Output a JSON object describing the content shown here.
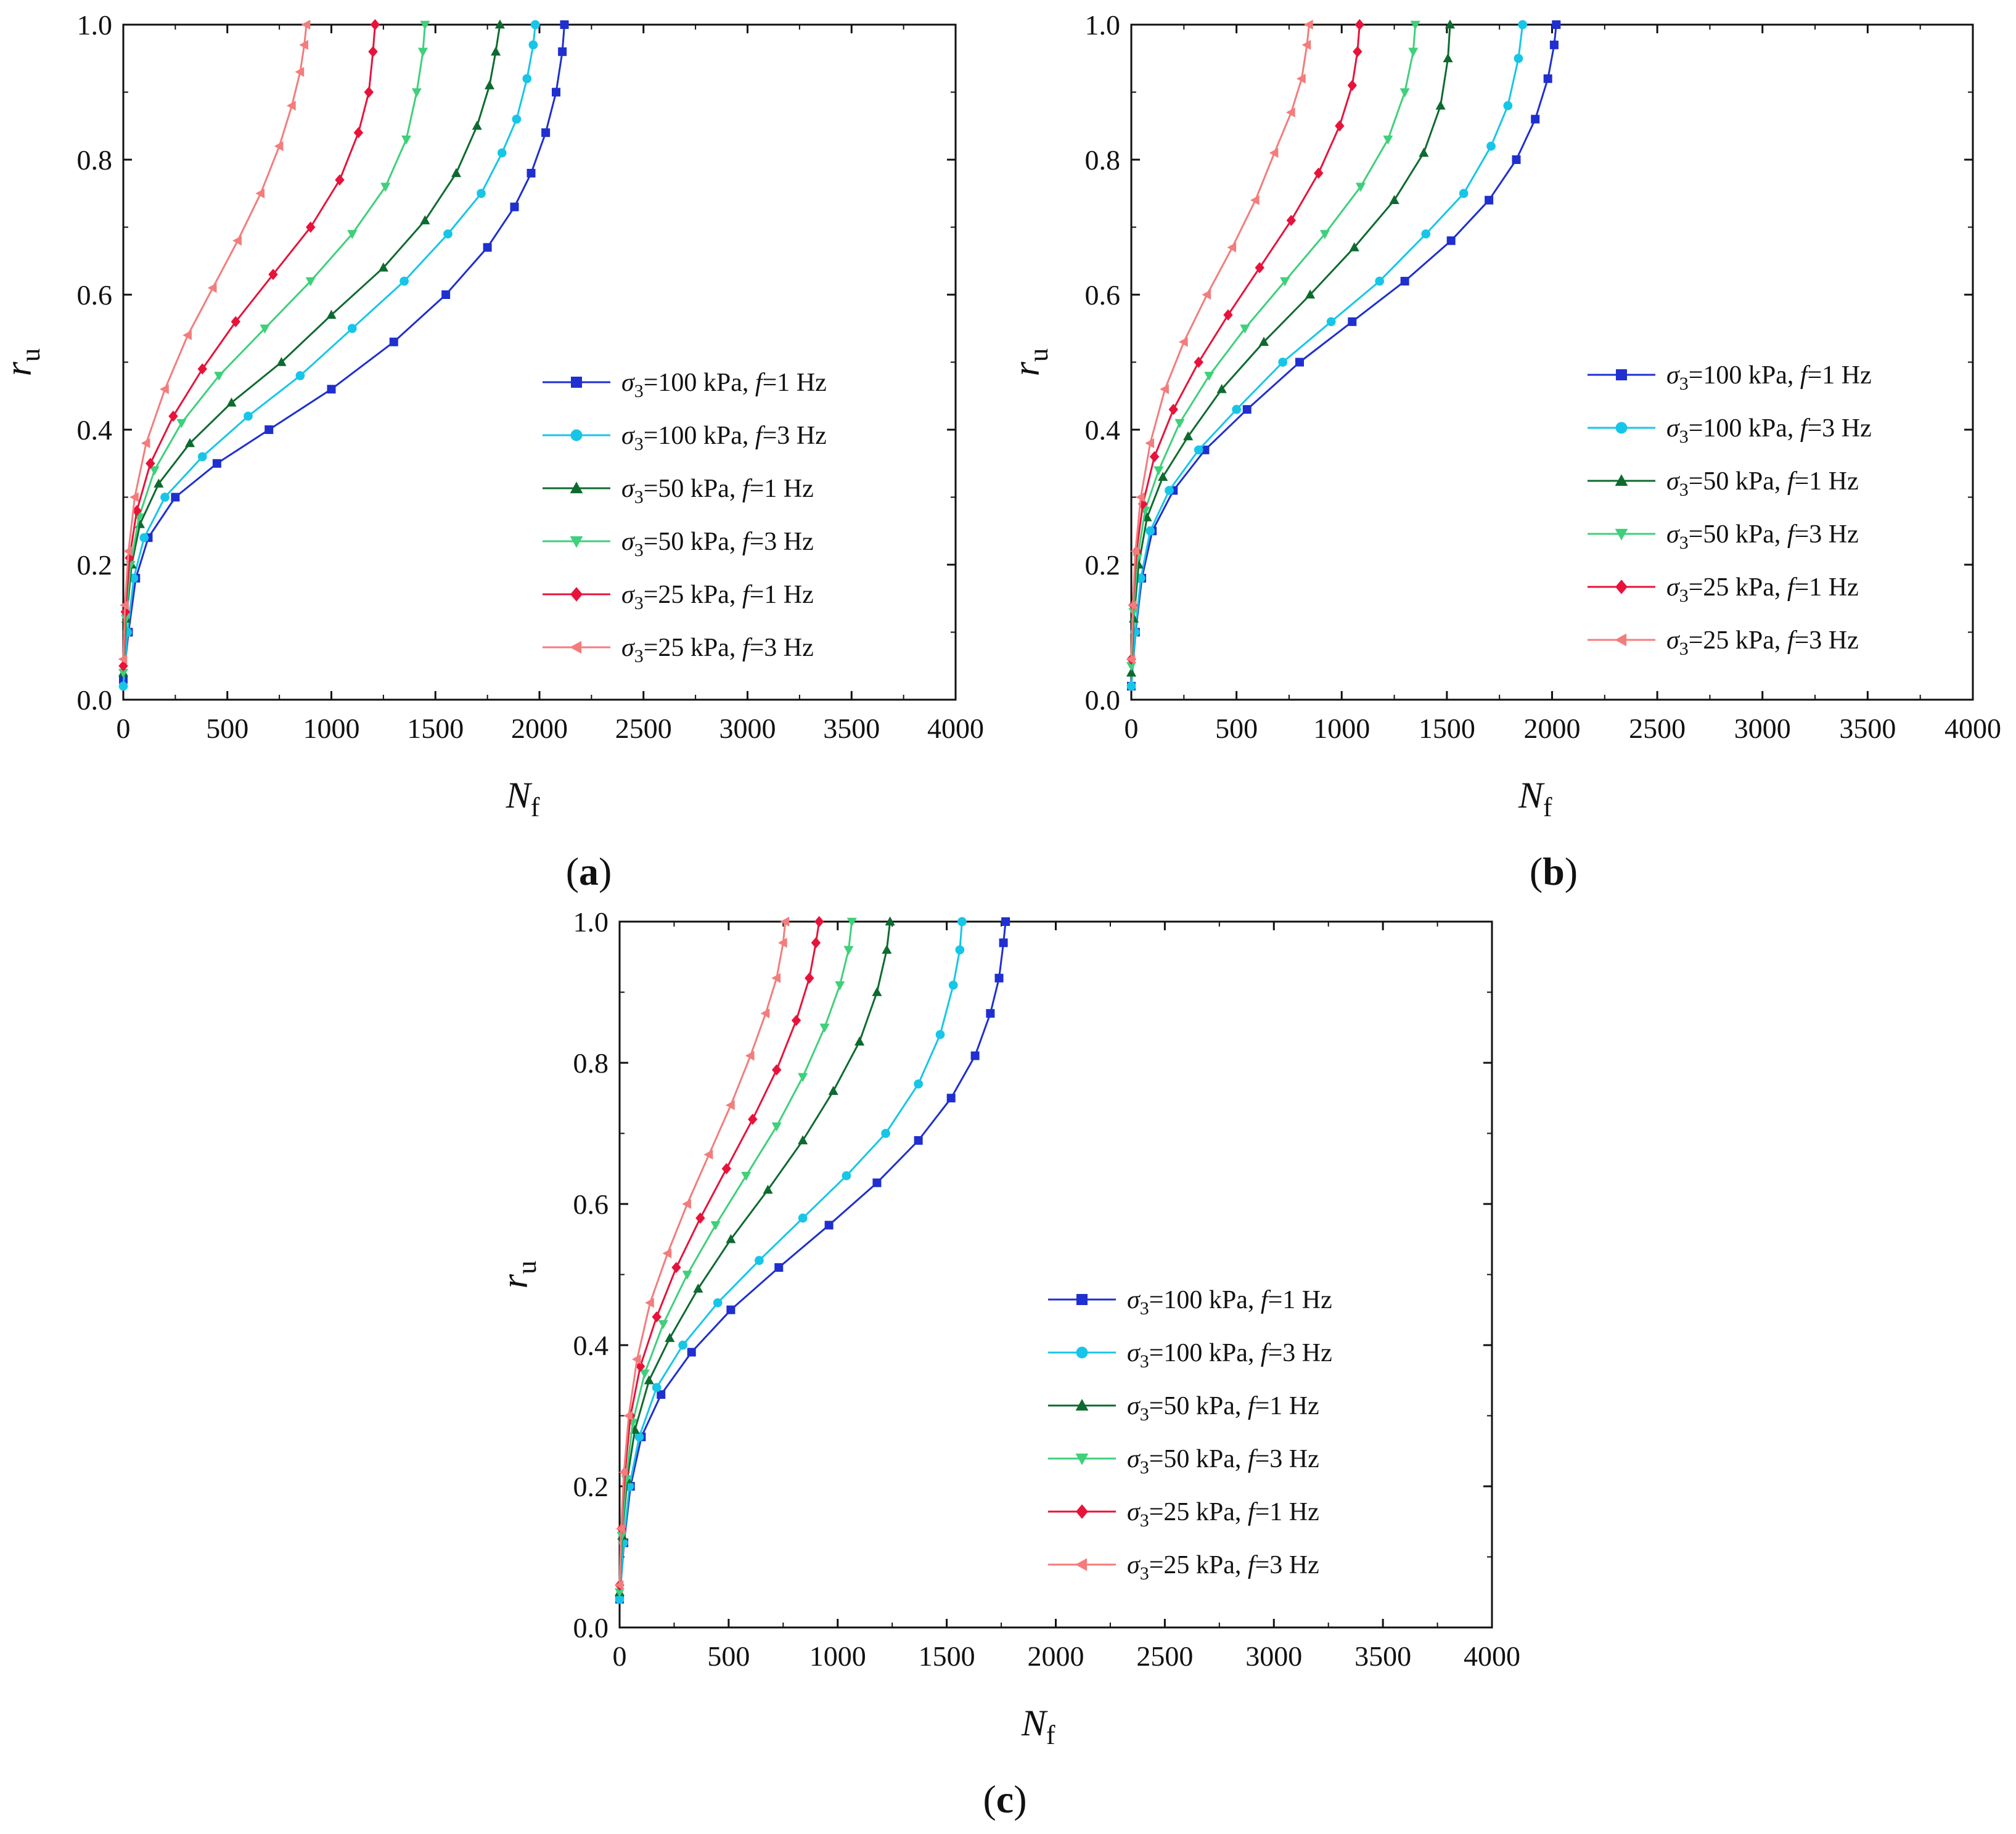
{
  "figure": {
    "y_title": {
      "main": "r",
      "sub": "u"
    },
    "x_title": {
      "main": "N",
      "sub": "f"
    },
    "series_colors": [
      "#1f2fd0",
      "#16c6e8",
      "#0d6b2f",
      "#3ed07a",
      "#e8123a",
      "#f47c7c"
    ],
    "series_markers": [
      "square",
      "circle",
      "triangle-up",
      "triangle-down",
      "diamond",
      "triangle-left"
    ]
  },
  "chart_data": [
    {
      "type": "line",
      "panel_label": "a",
      "xlim": [
        0,
        4000
      ],
      "ylim": [
        0,
        1
      ],
      "x_ticks": [
        "0",
        "500",
        "1000",
        "1500",
        "2000",
        "2500",
        "3000",
        "3500",
        "4000"
      ],
      "y_ticks": [
        "0.0",
        "0.2",
        "0.4",
        "0.6",
        "0.8",
        "1.0"
      ],
      "series": [
        {
          "name": "σ3=100 kPa, f=1 Hz",
          "legend": {
            "sigma": "σ",
            "sub": "3",
            "pre": "=100 kPa,",
            "f": "f",
            "post": "=1 Hz"
          },
          "x": [
            0,
            25,
            60,
            120,
            250,
            450,
            700,
            1000,
            1300,
            1550,
            1750,
            1880,
            1960,
            2030,
            2080,
            2110,
            2120
          ],
          "y": [
            0.03,
            0.1,
            0.18,
            0.24,
            0.3,
            0.35,
            0.4,
            0.46,
            0.53,
            0.6,
            0.67,
            0.73,
            0.78,
            0.84,
            0.9,
            0.96,
            1.0
          ]
        },
        {
          "name": "σ3=100 kPa, f=3 Hz",
          "legend": {
            "sigma": "σ",
            "sub": "3",
            "pre": "=100 kPa,",
            "f": "f",
            "post": "=3 Hz"
          },
          "x": [
            0,
            20,
            50,
            100,
            200,
            380,
            600,
            850,
            1100,
            1350,
            1560,
            1720,
            1820,
            1890,
            1940,
            1970,
            1980
          ],
          "y": [
            0.02,
            0.1,
            0.18,
            0.24,
            0.3,
            0.36,
            0.42,
            0.48,
            0.55,
            0.62,
            0.69,
            0.75,
            0.81,
            0.86,
            0.92,
            0.97,
            1.0
          ]
        },
        {
          "name": "σ3=50 kPa, f=1 Hz",
          "legend": {
            "sigma": "σ",
            "sub": "3",
            "pre": "=50 kPa,",
            "f": "f",
            "post": "=1 Hz"
          },
          "x": [
            0,
            15,
            40,
            80,
            170,
            320,
            520,
            760,
            1000,
            1250,
            1450,
            1600,
            1700,
            1760,
            1790,
            1810
          ],
          "y": [
            0.04,
            0.12,
            0.2,
            0.26,
            0.32,
            0.38,
            0.44,
            0.5,
            0.57,
            0.64,
            0.71,
            0.78,
            0.85,
            0.91,
            0.96,
            1.0
          ]
        },
        {
          "name": "σ3=50 kPa, f=3 Hz",
          "legend": {
            "sigma": "σ",
            "sub": "3",
            "pre": "=50 kPa,",
            "f": "f",
            "post": "=3 Hz"
          },
          "x": [
            0,
            12,
            35,
            75,
            150,
            280,
            460,
            680,
            900,
            1100,
            1260,
            1360,
            1410,
            1440,
            1450
          ],
          "y": [
            0.04,
            0.12,
            0.2,
            0.27,
            0.34,
            0.41,
            0.48,
            0.55,
            0.62,
            0.69,
            0.76,
            0.83,
            0.9,
            0.96,
            1.0
          ]
        },
        {
          "name": "σ3=25 kPa, f=1 Hz",
          "legend": {
            "sigma": "σ",
            "sub": "3",
            "pre": "=25 kPa,",
            "f": "f",
            "post": "=1 Hz"
          },
          "x": [
            0,
            10,
            30,
            65,
            130,
            240,
            380,
            540,
            720,
            900,
            1040,
            1130,
            1180,
            1200,
            1210
          ],
          "y": [
            0.05,
            0.13,
            0.21,
            0.28,
            0.35,
            0.42,
            0.49,
            0.56,
            0.63,
            0.7,
            0.77,
            0.84,
            0.9,
            0.96,
            1.0
          ]
        },
        {
          "name": "σ3=25 kPa, f=3 Hz",
          "legend": {
            "sigma": "σ",
            "sub": "3",
            "pre": "=25 kPa,",
            "f": "f",
            "post": "=3 Hz"
          },
          "x": [
            0,
            8,
            25,
            55,
            110,
            200,
            310,
            430,
            550,
            660,
            750,
            810,
            850,
            870,
            880
          ],
          "y": [
            0.06,
            0.14,
            0.22,
            0.3,
            0.38,
            0.46,
            0.54,
            0.61,
            0.68,
            0.75,
            0.82,
            0.88,
            0.93,
            0.97,
            1.0
          ]
        }
      ]
    },
    {
      "type": "line",
      "panel_label": "b",
      "xlim": [
        0,
        4000
      ],
      "ylim": [
        0,
        1
      ],
      "x_ticks": [
        "0",
        "500",
        "1000",
        "1500",
        "2000",
        "2500",
        "3000",
        "3500",
        "4000"
      ],
      "y_ticks": [
        "0.0",
        "0.2",
        "0.4",
        "0.6",
        "0.8",
        "1.0"
      ],
      "series": [
        {
          "name": "σ3=100 kPa, f=1 Hz",
          "legend": {
            "sigma": "σ",
            "sub": "3",
            "pre": "=100 kPa,",
            "f": "f",
            "post": "=1 Hz"
          },
          "x": [
            0,
            20,
            50,
            100,
            200,
            350,
            550,
            800,
            1050,
            1300,
            1520,
            1700,
            1830,
            1920,
            1980,
            2010,
            2020
          ],
          "y": [
            0.02,
            0.1,
            0.18,
            0.25,
            0.31,
            0.37,
            0.43,
            0.5,
            0.56,
            0.62,
            0.68,
            0.74,
            0.8,
            0.86,
            0.92,
            0.97,
            1.0
          ]
        },
        {
          "name": "σ3=100 kPa, f=3 Hz",
          "legend": {
            "sigma": "σ",
            "sub": "3",
            "pre": "=100 kPa,",
            "f": "f",
            "post": "=3 Hz"
          },
          "x": [
            0,
            18,
            45,
            90,
            180,
            320,
            500,
            720,
            950,
            1180,
            1400,
            1580,
            1710,
            1790,
            1840,
            1860
          ],
          "y": [
            0.02,
            0.1,
            0.18,
            0.25,
            0.31,
            0.37,
            0.43,
            0.5,
            0.56,
            0.62,
            0.69,
            0.75,
            0.82,
            0.88,
            0.95,
            1.0
          ]
        },
        {
          "name": "σ3=50 kPa, f=1 Hz",
          "legend": {
            "sigma": "σ",
            "sub": "3",
            "pre": "=50 kPa,",
            "f": "f",
            "post": "=1 Hz"
          },
          "x": [
            0,
            12,
            35,
            75,
            150,
            270,
            430,
            630,
            850,
            1060,
            1250,
            1390,
            1470,
            1505,
            1515
          ],
          "y": [
            0.04,
            0.12,
            0.2,
            0.27,
            0.33,
            0.39,
            0.46,
            0.53,
            0.6,
            0.67,
            0.74,
            0.81,
            0.88,
            0.95,
            1.0
          ]
        },
        {
          "name": "σ3=50 kPa, f=3 Hz",
          "legend": {
            "sigma": "σ",
            "sub": "3",
            "pre": "=50 kPa,",
            "f": "f",
            "post": "=3 Hz"
          },
          "x": [
            0,
            10,
            30,
            65,
            130,
            230,
            370,
            540,
            730,
            920,
            1090,
            1220,
            1300,
            1340,
            1350
          ],
          "y": [
            0.05,
            0.13,
            0.21,
            0.28,
            0.34,
            0.41,
            0.48,
            0.55,
            0.62,
            0.69,
            0.76,
            0.83,
            0.9,
            0.96,
            1.0
          ]
        },
        {
          "name": "σ3=25 kPa, f=1 Hz",
          "legend": {
            "sigma": "σ",
            "sub": "3",
            "pre": "=25 kPa,",
            "f": "f",
            "post": "=1 Hz"
          },
          "x": [
            0,
            8,
            25,
            55,
            110,
            200,
            320,
            460,
            610,
            760,
            890,
            990,
            1050,
            1075,
            1085
          ],
          "y": [
            0.06,
            0.14,
            0.22,
            0.29,
            0.36,
            0.43,
            0.5,
            0.57,
            0.64,
            0.71,
            0.78,
            0.85,
            0.91,
            0.96,
            1.0
          ]
        },
        {
          "name": "σ3=25 kPa, f=3 Hz",
          "legend": {
            "sigma": "σ",
            "sub": "3",
            "pre": "=25 kPa,",
            "f": "f",
            "post": "=3 Hz"
          },
          "x": [
            0,
            7,
            20,
            45,
            90,
            160,
            250,
            360,
            480,
            590,
            680,
            760,
            810,
            835,
            845
          ],
          "y": [
            0.06,
            0.14,
            0.22,
            0.3,
            0.38,
            0.46,
            0.53,
            0.6,
            0.67,
            0.74,
            0.81,
            0.87,
            0.92,
            0.97,
            1.0
          ]
        }
      ]
    },
    {
      "type": "line",
      "panel_label": "c",
      "xlim": [
        0,
        4000
      ],
      "ylim": [
        0,
        1
      ],
      "x_ticks": [
        "0",
        "500",
        "1000",
        "1500",
        "2000",
        "2500",
        "3000",
        "3500",
        "4000"
      ],
      "y_ticks": [
        "0.0",
        "0.2",
        "0.4",
        "0.6",
        "0.8",
        "1.0"
      ],
      "series": [
        {
          "name": "σ3=100 kPa, f=1 Hz",
          "legend": {
            "sigma": "σ",
            "sub": "3",
            "pre": "=100 kPa,",
            "f": "f",
            "post": "=1 Hz"
          },
          "x": [
            0,
            20,
            50,
            100,
            190,
            330,
            510,
            730,
            960,
            1180,
            1370,
            1520,
            1630,
            1700,
            1740,
            1760,
            1770
          ],
          "y": [
            0.04,
            0.12,
            0.2,
            0.27,
            0.33,
            0.39,
            0.45,
            0.51,
            0.57,
            0.63,
            0.69,
            0.75,
            0.81,
            0.87,
            0.92,
            0.97,
            1.0
          ]
        },
        {
          "name": "σ3=100 kPa, f=3 Hz",
          "legend": {
            "sigma": "σ",
            "sub": "3",
            "pre": "=100 kPa,",
            "f": "f",
            "post": "=3 Hz"
          },
          "x": [
            0,
            18,
            45,
            90,
            170,
            290,
            450,
            640,
            840,
            1040,
            1220,
            1370,
            1470,
            1530,
            1560,
            1570
          ],
          "y": [
            0.04,
            0.12,
            0.2,
            0.27,
            0.34,
            0.4,
            0.46,
            0.52,
            0.58,
            0.64,
            0.7,
            0.77,
            0.84,
            0.91,
            0.96,
            1.0
          ]
        },
        {
          "name": "σ3=50 kPa, f=1 Hz",
          "legend": {
            "sigma": "σ",
            "sub": "3",
            "pre": "=50 kPa,",
            "f": "f",
            "post": "=1 Hz"
          },
          "x": [
            0,
            12,
            35,
            70,
            135,
            230,
            360,
            510,
            680,
            840,
            980,
            1100,
            1180,
            1225,
            1240
          ],
          "y": [
            0.05,
            0.13,
            0.21,
            0.28,
            0.35,
            0.41,
            0.48,
            0.55,
            0.62,
            0.69,
            0.76,
            0.83,
            0.9,
            0.96,
            1.0
          ]
        },
        {
          "name": "σ3=50 kPa, f=3 Hz",
          "legend": {
            "sigma": "σ",
            "sub": "3",
            "pre": "=50 kPa,",
            "f": "f",
            "post": "=3 Hz"
          },
          "x": [
            0,
            10,
            30,
            60,
            115,
            200,
            310,
            440,
            580,
            720,
            840,
            940,
            1010,
            1050,
            1065
          ],
          "y": [
            0.05,
            0.13,
            0.21,
            0.29,
            0.36,
            0.43,
            0.5,
            0.57,
            0.64,
            0.71,
            0.78,
            0.85,
            0.91,
            0.96,
            1.0
          ]
        },
        {
          "name": "σ3=25 kPa, f=1 Hz",
          "legend": {
            "sigma": "σ",
            "sub": "3",
            "pre": "=25 kPa,",
            "f": "f",
            "post": "=1 Hz"
          },
          "x": [
            0,
            8,
            25,
            50,
            95,
            170,
            260,
            370,
            490,
            610,
            720,
            810,
            870,
            900,
            915
          ],
          "y": [
            0.06,
            0.14,
            0.22,
            0.3,
            0.37,
            0.44,
            0.51,
            0.58,
            0.65,
            0.72,
            0.79,
            0.86,
            0.92,
            0.97,
            1.0
          ]
        },
        {
          "name": "σ3=25 kPa, f=3 Hz",
          "legend": {
            "sigma": "σ",
            "sub": "3",
            "pre": "=25 kPa,",
            "f": "f",
            "post": "=3 Hz"
          },
          "x": [
            0,
            7,
            20,
            42,
            80,
            140,
            220,
            310,
            410,
            510,
            600,
            670,
            720,
            750,
            760
          ],
          "y": [
            0.06,
            0.14,
            0.22,
            0.3,
            0.38,
            0.46,
            0.53,
            0.6,
            0.67,
            0.74,
            0.81,
            0.87,
            0.92,
            0.97,
            1.0
          ]
        }
      ]
    }
  ]
}
